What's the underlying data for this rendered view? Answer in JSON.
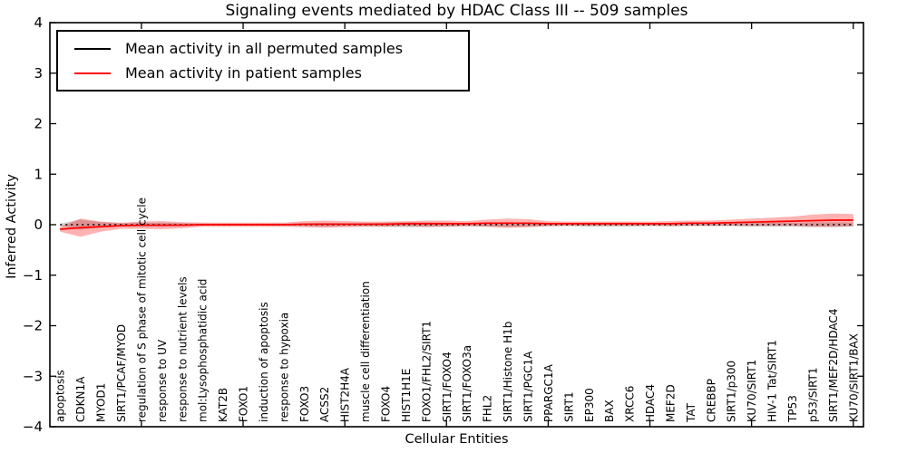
{
  "chart_data": {
    "type": "line",
    "title": "Signaling events mediated by HDAC Class III -- 509 samples",
    "xlabel": "Cellular Entities",
    "ylabel": "Inferred Activity",
    "ylim": [
      -4,
      4
    ],
    "grid": false,
    "legend_position": "upper left",
    "legend": [
      {
        "label": "Mean activity in all permuted samples",
        "color": "#000000"
      },
      {
        "label": "Mean activity in patient samples",
        "color": "#ff0000"
      }
    ],
    "categories": [
      "apoptosis",
      "CDKN1A",
      "MYOD1",
      "SIRT1/PCAF/MYOD",
      "regulation of S phase of mitotic cell cycle",
      "response to UV",
      "response to nutrient levels",
      "mol:Lysophosphatidic acid",
      "KAT2B",
      "FOXO1",
      "induction of apoptosis",
      "response to hypoxia",
      "FOXO3",
      "ACSS2",
      "HIST2H4A",
      "muscle cell differentiation",
      "FOXO4",
      "HIST1H1E",
      "FOXO1/FHL2/SIRT1",
      "SIRT1/FOXO4",
      "SIRT1/FOXO3a",
      "FHL2",
      "SIRT1/Histone H1b",
      "SIRT1/PGC1A",
      "PPARGC1A",
      "SIRT1",
      "EP300",
      "BAX",
      "XRCC6",
      "HDAC4",
      "MEF2D",
      "TAT",
      "CREBBP",
      "SIRT1/p300",
      "KU70/SIRT1",
      "HIV-1 Tat/SIRT1",
      "TP53",
      "p53/SIRT1",
      "SIRT1/MEF2D/HDAC4",
      "KU70/SIRT1/BAX"
    ],
    "series": [
      {
        "name": "Mean activity in all permuted samples",
        "color": "#000000",
        "line_style": "dotted",
        "band_color": "#000000",
        "band_opacity": 0.18,
        "values": [
          0,
          0,
          0,
          0,
          0,
          0,
          0,
          0,
          0,
          0,
          0,
          0,
          0,
          0,
          0,
          0,
          0,
          0,
          0,
          0,
          0,
          0,
          0,
          0,
          0,
          0,
          0,
          0,
          0,
          0,
          0,
          0,
          0,
          0,
          0,
          0,
          0,
          0,
          0,
          0
        ],
        "band_halfwidth": [
          0.02,
          0.1,
          0.05,
          0.03,
          0.04,
          0.04,
          0.03,
          0.02,
          0.02,
          0.02,
          0.02,
          0.02,
          0.03,
          0.04,
          0.03,
          0.03,
          0.04,
          0.05,
          0.05,
          0.04,
          0.03,
          0.04,
          0.05,
          0.04,
          0.03,
          0.03,
          0.04,
          0.04,
          0.04,
          0.03,
          0.03,
          0.03,
          0.03,
          0.03,
          0.04,
          0.04,
          0.04,
          0.05,
          0.05,
          0.04
        ]
      },
      {
        "name": "Mean activity in patient samples",
        "color": "#ff0000",
        "line_style": "solid",
        "band_color": "#ff0000",
        "band_opacity": 0.3,
        "values": [
          -0.09,
          -0.06,
          -0.04,
          -0.02,
          -0.01,
          -0.01,
          -0.01,
          0.0,
          0.0,
          0.0,
          0.0,
          0.0,
          0.01,
          0.01,
          0.01,
          0.01,
          0.01,
          0.02,
          0.02,
          0.02,
          0.02,
          0.03,
          0.03,
          0.03,
          0.02,
          0.02,
          0.02,
          0.02,
          0.02,
          0.02,
          0.02,
          0.03,
          0.03,
          0.04,
          0.05,
          0.06,
          0.07,
          0.08,
          0.09,
          0.09
        ],
        "band_halfwidth": [
          0.05,
          0.18,
          0.1,
          0.06,
          0.07,
          0.08,
          0.06,
          0.04,
          0.04,
          0.04,
          0.04,
          0.04,
          0.06,
          0.07,
          0.06,
          0.05,
          0.05,
          0.05,
          0.06,
          0.06,
          0.05,
          0.07,
          0.09,
          0.08,
          0.05,
          0.04,
          0.04,
          0.04,
          0.04,
          0.04,
          0.05,
          0.05,
          0.05,
          0.06,
          0.07,
          0.08,
          0.09,
          0.12,
          0.13,
          0.12
        ]
      }
    ],
    "x_major_tick_every": 5,
    "y_tick_step": 1
  }
}
